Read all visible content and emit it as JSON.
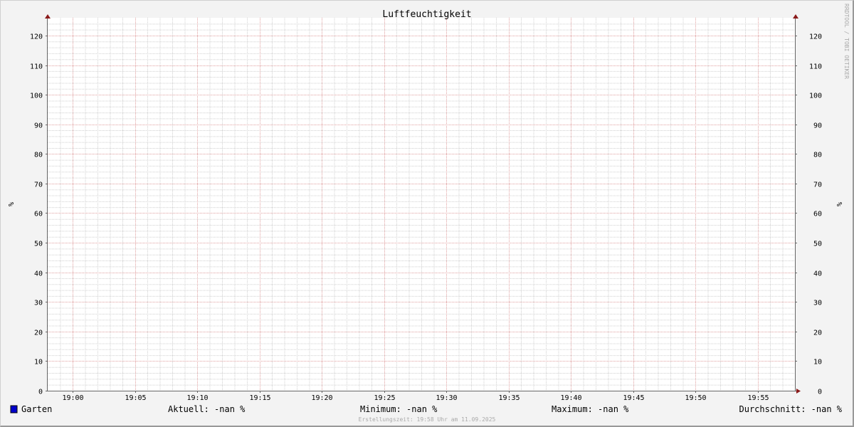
{
  "chart_data": {
    "type": "line",
    "title": "Luftfeuchtigkeit",
    "ylabel": "%",
    "ylabel_right": "%",
    "ylim": [
      0,
      126
    ],
    "yticks": [
      0,
      10,
      20,
      30,
      40,
      50,
      60,
      70,
      80,
      90,
      100,
      110,
      120
    ],
    "xlim": [
      "18:58",
      "19:58"
    ],
    "xticks": [
      "19:00",
      "19:05",
      "19:10",
      "19:15",
      "19:20",
      "19:25",
      "19:30",
      "19:35",
      "19:40",
      "19:45",
      "19:50",
      "19:55"
    ],
    "grid": true,
    "series": [
      {
        "name": "Garten",
        "color": "#0000cc",
        "values": []
      }
    ],
    "legend": {
      "name": "Garten",
      "current": "Aktuell: -nan %",
      "minimum": "Minimum: -nan %",
      "maximum": "Maximum: -nan %",
      "average": "Durchschnitt: -nan %"
    },
    "footer": "Erstellungszeit: 19:58 Uhr am 11.09.2025",
    "watermark": "RRDTOOL / TOBI OETIKER"
  },
  "colors": {
    "major_grid": "#e0a0a0",
    "minor_grid": "#d0d0d0",
    "axis": "#666666",
    "arrow": "#8b1a1a"
  }
}
